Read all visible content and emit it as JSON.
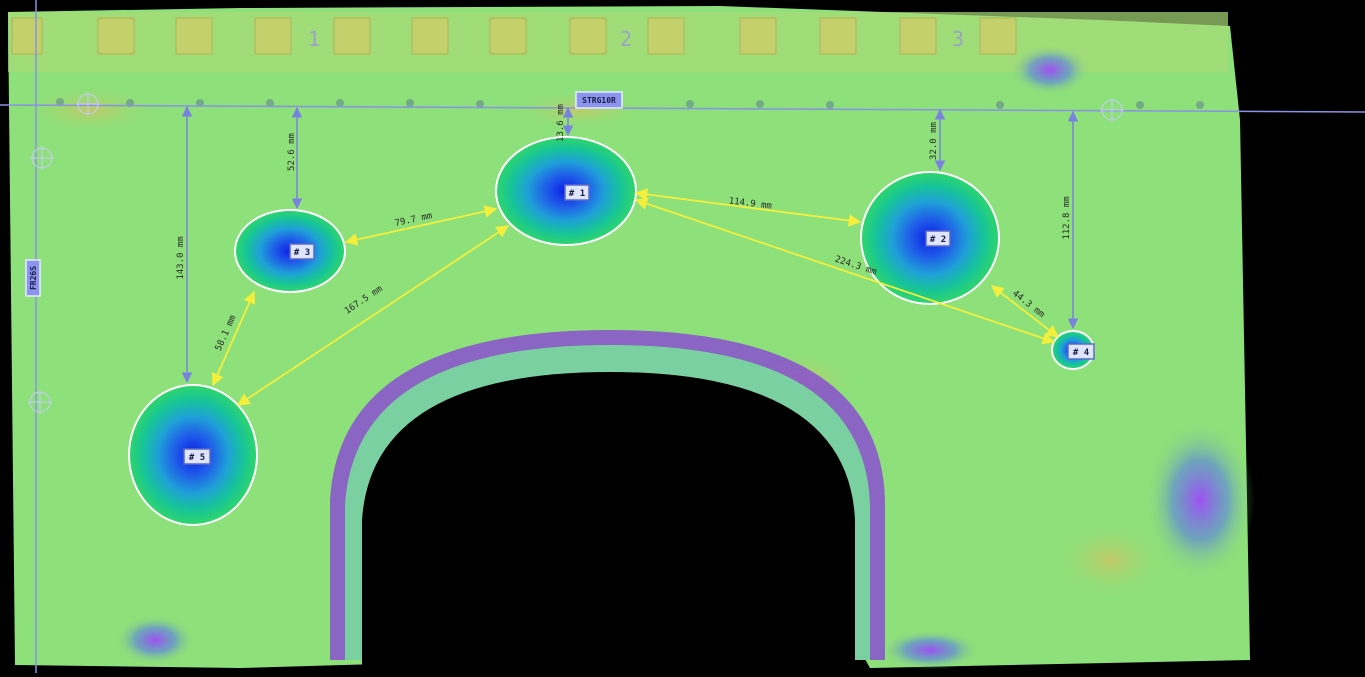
{
  "reference_labels": {
    "stringer": "STRG10R",
    "frame": "FR26S"
  },
  "defects": [
    {
      "id": "# 1"
    },
    {
      "id": "# 2"
    },
    {
      "id": "# 3"
    },
    {
      "id": "# 4"
    },
    {
      "id": "# 5"
    }
  ],
  "measurements": {
    "d5_to_ref": "143.0 mm",
    "d3_to_ref": "52.6 mm",
    "d1_to_ref": "13.6 mm",
    "d2_to_ref": "32.0 mm",
    "d4_to_ref": "112.8 mm",
    "d3_to_d1": "79.7 mm",
    "d1_to_d2": "114.9 mm",
    "d1_to_d4": "224.3 mm",
    "d2_to_d4": "44.3 mm",
    "d5_to_d3": "58.1 mm",
    "d5_to_d1": "167.5 mm"
  },
  "panel_markers": [
    "1",
    "2",
    "3"
  ],
  "colors": {
    "surface": "#8ee07a",
    "defect_core": "#1030e0",
    "arrow_yellow": "#f4ef3c",
    "ref_line": "#8a92e6",
    "arch_band": "#8a4fd0"
  }
}
